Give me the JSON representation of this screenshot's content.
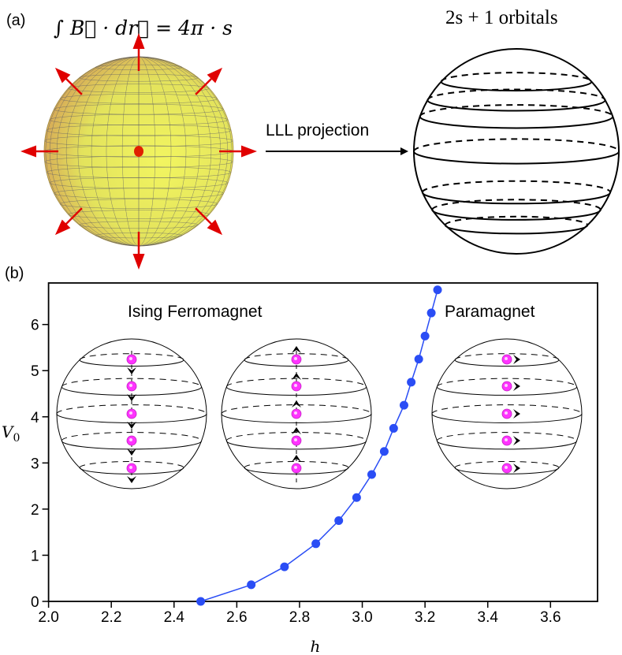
{
  "panel_a": {
    "label": "(a)",
    "formula": "∫ B⃗ · dr⃗ = 4π · s",
    "orbitals_label": "2s + 1 orbitals",
    "arrow_label": "LLL projection",
    "colors": {
      "sphere": "#e6e65a",
      "field_arrows": "#e00000"
    }
  },
  "panel_b": {
    "label": "(b)",
    "phase_left": "Ising Ferromagnet",
    "phase_right": "Paramagnet",
    "insets": [
      {
        "spin_direction": "down"
      },
      {
        "spin_direction": "up"
      },
      {
        "spin_direction": "right"
      }
    ],
    "colors": {
      "spin_dot": "#ff33ff"
    }
  },
  "chart_data": {
    "type": "line",
    "xlabel": "h",
    "ylabel": "V0",
    "xlim": [
      2.0,
      3.75
    ],
    "ylim": [
      0,
      6.9
    ],
    "xticks": [
      "2.0",
      "2.2",
      "2.4",
      "2.6",
      "2.8",
      "3.0",
      "3.2",
      "3.4",
      "3.6"
    ],
    "yticks": [
      "0",
      "1",
      "2",
      "3",
      "4",
      "5",
      "6"
    ],
    "grid": false,
    "series": [
      {
        "color": "#2a4df5",
        "marker": "circle",
        "x": [
          2.485,
          2.646,
          2.752,
          2.852,
          2.925,
          2.982,
          3.03,
          3.07,
          3.1,
          3.133,
          3.156,
          3.18,
          3.2,
          3.22,
          3.24
        ],
        "y": [
          0,
          0.36,
          0.75,
          1.25,
          1.75,
          2.25,
          2.75,
          3.25,
          3.75,
          4.25,
          4.75,
          5.25,
          5.75,
          6.25,
          6.75
        ]
      }
    ]
  }
}
